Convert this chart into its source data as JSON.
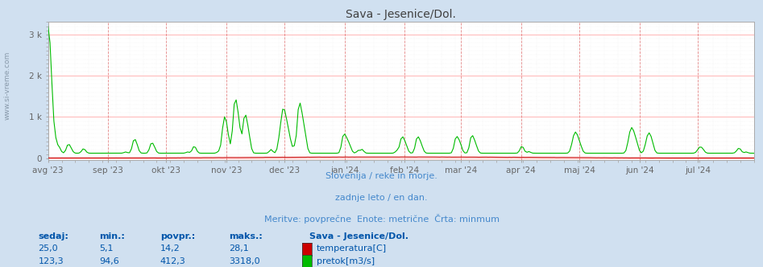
{
  "title": "Sava - Jesenice/Dol.",
  "title_color": "#404040",
  "background_color": "#d0e0f0",
  "plot_bg_color": "#ffffff",
  "grid_color_major": "#ffbbbb",
  "grid_color_minor": "#e8e8e8",
  "n_days": 365,
  "ylim_min": -50,
  "ylim_max": 3318,
  "yticks": [
    0,
    1000,
    2000,
    3000
  ],
  "ytick_labels": [
    "0",
    "1 k",
    "2 k",
    "3 k"
  ],
  "x_tick_labels": [
    "avg '23",
    "sep '23",
    "okt '23",
    "nov '23",
    "dec '23",
    "jan '24",
    "feb '24",
    "mar '24",
    "apr '24",
    "maj '24",
    "jun '24",
    "jul '24"
  ],
  "x_tick_positions": [
    0,
    31,
    61,
    92,
    122,
    153,
    184,
    213,
    244,
    274,
    305,
    335
  ],
  "line_color_flow": "#00bb00",
  "line_color_temp": "#cc0000",
  "line_width": 0.8,
  "watermark_text": "www.si-vreme.com",
  "subtitle1": "Slovenija / reke in morje.",
  "subtitle2": "zadnje leto / en dan.",
  "subtitle3": "Meritve: povprečne  Enote: metrične  Črta: minmum",
  "subtitle_color": "#4488cc",
  "left_sidebar_text": "www.si-vreme.com",
  "table_headers": [
    "sedaj:",
    "min.:",
    "povpr.:",
    "maks.:"
  ],
  "table_header_color": "#0055aa",
  "station_name": "Sava - Jesenice/Dol.",
  "row1_values": [
    "25,0",
    "5,1",
    "14,2",
    "28,1"
  ],
  "row2_values": [
    "123,3",
    "94,6",
    "412,3",
    "3318,0"
  ],
  "row1_label": "temperatura[C]",
  "row2_label": "pretok[m3/s]",
  "row1_color": "#cc0000",
  "row2_color": "#00bb00",
  "figsize": [
    9.47,
    3.32
  ],
  "dpi": 100,
  "vline_color": "#dd6666",
  "hline_color": "#ffbbbb",
  "spine_color": "#aaaaaa",
  "tick_color": "#666666",
  "title_fontsize": 10,
  "subtitle_fontsize": 8,
  "tick_fontsize": 7.5,
  "table_fontsize": 8
}
